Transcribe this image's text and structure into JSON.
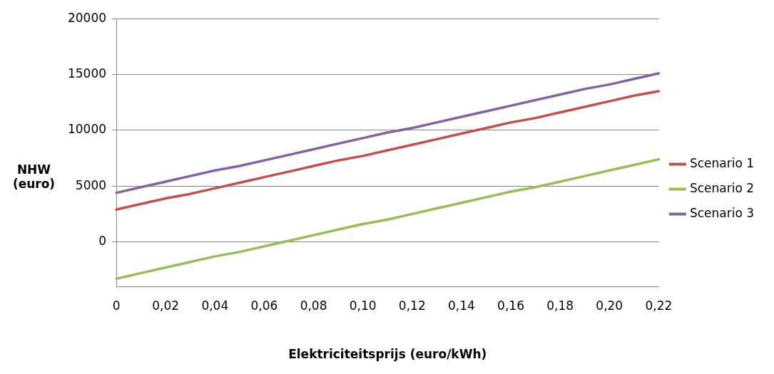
{
  "chart_data": {
    "type": "line",
    "xlabel": "Elektriciteitsprijs (euro/kWh)",
    "ylabel": "NHW\n(euro)",
    "categories": [
      "0",
      null,
      "0,02",
      null,
      "0,04",
      null,
      "0,06",
      null,
      "0,08",
      null,
      "0,10",
      null,
      "0,12",
      null,
      "0,14",
      null,
      "0,16",
      null,
      "0,18",
      null,
      "0,20",
      null,
      "0,22"
    ],
    "ylim": [
      -4000,
      20000
    ],
    "yticks": [
      0,
      5000,
      10000,
      15000,
      20000
    ],
    "grid": "y",
    "legend": "right",
    "marker": "none",
    "line_style": "solid",
    "series": [
      {
        "name": "Scenario 1",
        "color": "#c0504d",
        "values": [
          2900,
          3400,
          3900,
          4300,
          4800,
          5300,
          5800,
          6300,
          6800,
          7300,
          7700,
          8200,
          8700,
          9200,
          9700,
          10200,
          10700,
          11100,
          11600,
          12100,
          12600,
          13100,
          13500
        ]
      },
      {
        "name": "Scenario 2",
        "color": "#9bbb59",
        "values": [
          -3300,
          -2800,
          -2300,
          -1800,
          -1300,
          -900,
          -400,
          100,
          600,
          1100,
          1600,
          2000,
          2500,
          3000,
          3500,
          4000,
          4500,
          4900,
          5400,
          5900,
          6400,
          6900,
          7400
        ]
      },
      {
        "name": "Scenario 3",
        "color": "#8064a2",
        "values": [
          4400,
          4900,
          5400,
          5900,
          6400,
          6800,
          7300,
          7800,
          8300,
          8800,
          9300,
          9800,
          10200,
          10700,
          11200,
          11700,
          12200,
          12700,
          13200,
          13700,
          14100,
          14600,
          15100
        ]
      }
    ]
  }
}
